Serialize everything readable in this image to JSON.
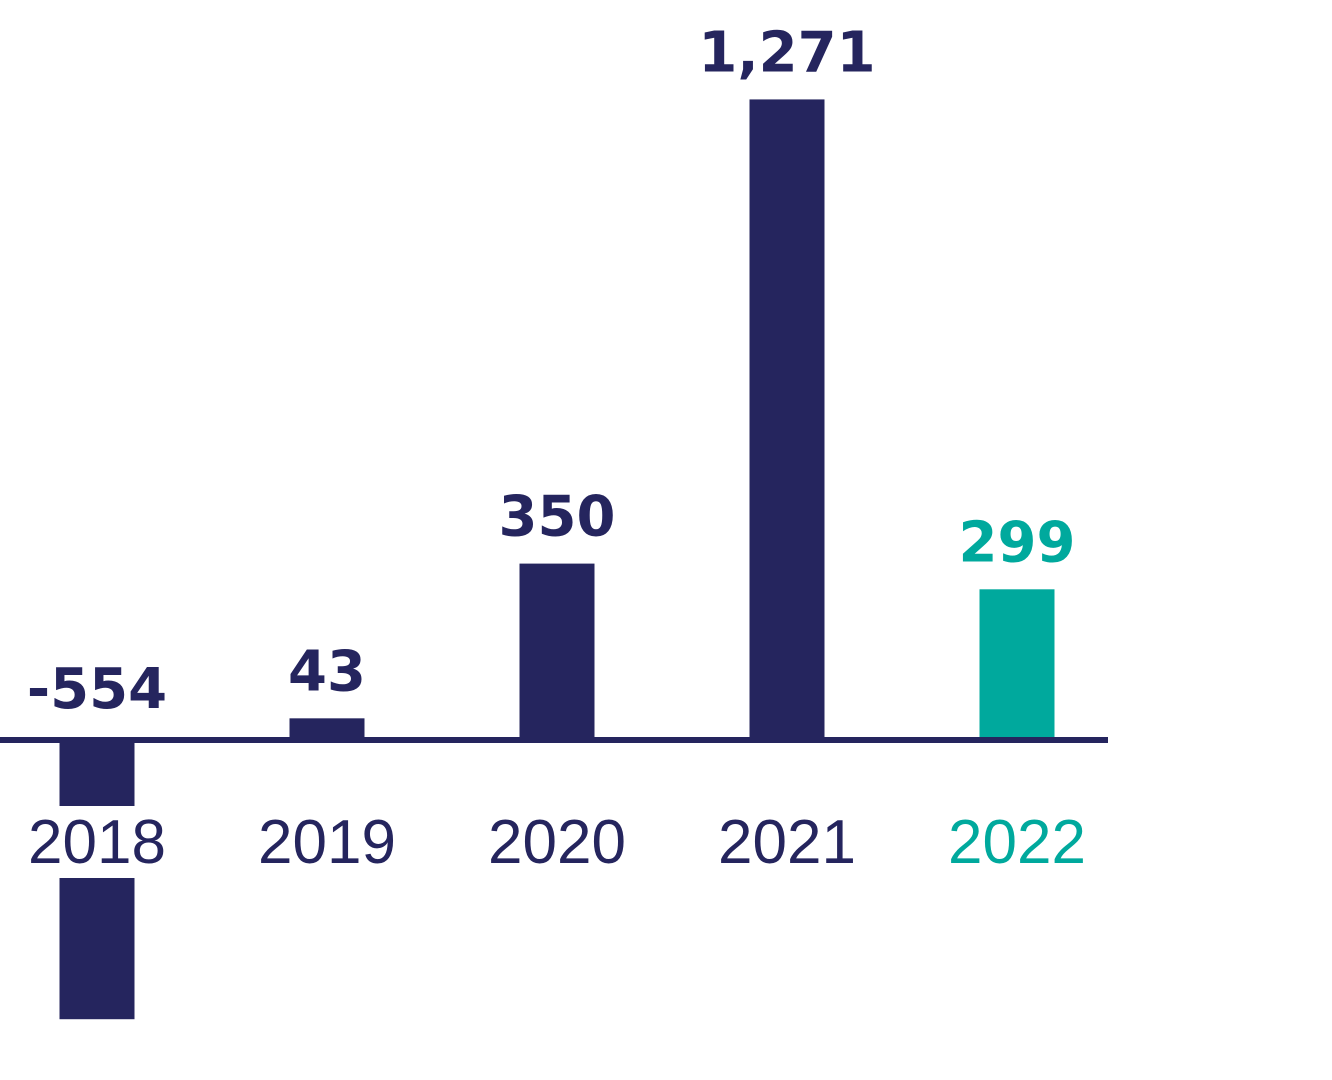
{
  "chart_data": {
    "type": "bar",
    "categories": [
      "2018",
      "2019",
      "2020",
      "2021",
      "2022"
    ],
    "values": [
      -554,
      43,
      350,
      1271,
      299
    ],
    "value_labels": [
      "-554",
      "43",
      "350",
      "1,271",
      "299"
    ],
    "colors": [
      "#25255e",
      "#25255e",
      "#25255e",
      "#25255e",
      "#00a99d"
    ],
    "title": "",
    "xlabel": "",
    "ylabel": "",
    "ylim": [
      -554,
      1271
    ],
    "grid": false
  }
}
